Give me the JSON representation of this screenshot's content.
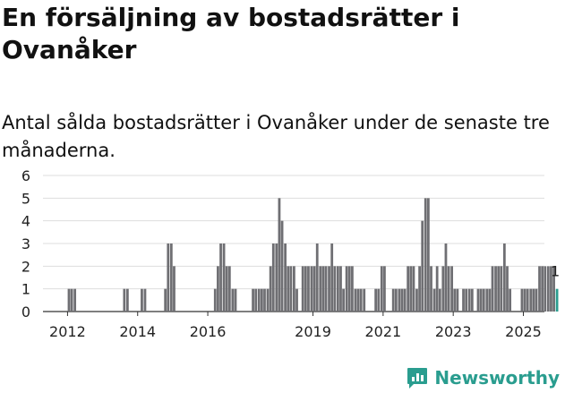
{
  "header": {
    "title": "En försäljning av bostadsrätter i Ovanåker",
    "subtitle": "Antal sålda bostadsrätter i Ovanåker under de senaste tre månaderna."
  },
  "brand": {
    "name": "Newsworthy",
    "color": "#2a9d8f"
  },
  "colors": {
    "bar": "#6f6f73",
    "highlight": "#2a9d8f",
    "grid": "#dddddd"
  },
  "chart_data": {
    "type": "bar",
    "title": "En försäljning av bostadsrätter i Ovanåker",
    "subtitle": "Antal sålda bostadsrätter i Ovanåker under de senaste tre månaderna.",
    "xlabel": "",
    "ylabel": "",
    "ylim": [
      0,
      6
    ],
    "y_ticks": [
      0,
      1,
      2,
      3,
      4,
      5,
      6
    ],
    "x_ticks": [
      2012,
      2014,
      2016,
      2019,
      2021,
      2023,
      2025
    ],
    "grid": "horizontal",
    "x_range": [
      2011.3,
      2025.6
    ],
    "highlight_annotation": "1",
    "series": [
      {
        "points": [
          [
            2012.04,
            1
          ],
          [
            2012.12,
            1
          ],
          [
            2012.21,
            1
          ],
          [
            2013.62,
            1
          ],
          [
            2013.71,
            1
          ],
          [
            2014.12,
            1
          ],
          [
            2014.21,
            1
          ],
          [
            2014.79,
            1
          ],
          [
            2014.87,
            3
          ],
          [
            2014.96,
            3
          ],
          [
            2015.04,
            2
          ],
          [
            2016.21,
            1
          ],
          [
            2016.29,
            2
          ],
          [
            2016.37,
            3
          ],
          [
            2016.46,
            3
          ],
          [
            2016.54,
            2
          ],
          [
            2016.62,
            2
          ],
          [
            2016.71,
            1
          ],
          [
            2016.79,
            1
          ],
          [
            2017.29,
            1
          ],
          [
            2017.37,
            1
          ],
          [
            2017.46,
            1
          ],
          [
            2017.54,
            1
          ],
          [
            2017.62,
            1
          ],
          [
            2017.71,
            1
          ],
          [
            2017.79,
            2
          ],
          [
            2017.87,
            3
          ],
          [
            2017.96,
            3
          ],
          [
            2018.04,
            5
          ],
          [
            2018.12,
            4
          ],
          [
            2018.21,
            3
          ],
          [
            2018.29,
            2
          ],
          [
            2018.37,
            2
          ],
          [
            2018.46,
            2
          ],
          [
            2018.54,
            1
          ],
          [
            2018.71,
            2
          ],
          [
            2018.79,
            2
          ],
          [
            2018.87,
            2
          ],
          [
            2018.96,
            2
          ],
          [
            2019.04,
            2
          ],
          [
            2019.12,
            3
          ],
          [
            2019.21,
            2
          ],
          [
            2019.29,
            2
          ],
          [
            2019.37,
            2
          ],
          [
            2019.46,
            2
          ],
          [
            2019.54,
            3
          ],
          [
            2019.62,
            2
          ],
          [
            2019.71,
            2
          ],
          [
            2019.79,
            2
          ],
          [
            2019.87,
            1
          ],
          [
            2019.96,
            2
          ],
          [
            2020.04,
            2
          ],
          [
            2020.12,
            2
          ],
          [
            2020.21,
            1
          ],
          [
            2020.29,
            1
          ],
          [
            2020.37,
            1
          ],
          [
            2020.46,
            1
          ],
          [
            2020.79,
            1
          ],
          [
            2020.87,
            1
          ],
          [
            2020.96,
            2
          ],
          [
            2021.04,
            2
          ],
          [
            2021.29,
            1
          ],
          [
            2021.37,
            1
          ],
          [
            2021.46,
            1
          ],
          [
            2021.54,
            1
          ],
          [
            2021.62,
            1
          ],
          [
            2021.71,
            2
          ],
          [
            2021.79,
            2
          ],
          [
            2021.87,
            2
          ],
          [
            2021.96,
            1
          ],
          [
            2022.04,
            2
          ],
          [
            2022.12,
            4
          ],
          [
            2022.21,
            5
          ],
          [
            2022.29,
            5
          ],
          [
            2022.37,
            2
          ],
          [
            2022.46,
            1
          ],
          [
            2022.54,
            2
          ],
          [
            2022.62,
            1
          ],
          [
            2022.71,
            2
          ],
          [
            2022.79,
            3
          ],
          [
            2022.87,
            2
          ],
          [
            2022.96,
            2
          ],
          [
            2023.04,
            1
          ],
          [
            2023.12,
            1
          ],
          [
            2023.29,
            1
          ],
          [
            2023.37,
            1
          ],
          [
            2023.46,
            1
          ],
          [
            2023.54,
            1
          ],
          [
            2023.71,
            1
          ],
          [
            2023.79,
            1
          ],
          [
            2023.87,
            1
          ],
          [
            2023.96,
            1
          ],
          [
            2024.04,
            1
          ],
          [
            2024.12,
            2
          ],
          [
            2024.21,
            2
          ],
          [
            2024.29,
            2
          ],
          [
            2024.37,
            2
          ],
          [
            2024.46,
            3
          ],
          [
            2024.54,
            2
          ],
          [
            2024.62,
            1
          ],
          [
            2024.96,
            1
          ],
          [
            2025.04,
            1
          ],
          [
            2025.12,
            1
          ],
          [
            2025.21,
            1
          ],
          [
            2025.29,
            1
          ],
          [
            2025.37,
            1
          ],
          [
            2025.46,
            2
          ],
          [
            2025.54,
            2
          ],
          [
            2025.62,
            2
          ],
          [
            2025.71,
            2
          ],
          [
            2025.79,
            2
          ],
          [
            2025.87,
            2
          ]
        ]
      }
    ],
    "highlight_point": [
      2025.96,
      1
    ]
  }
}
